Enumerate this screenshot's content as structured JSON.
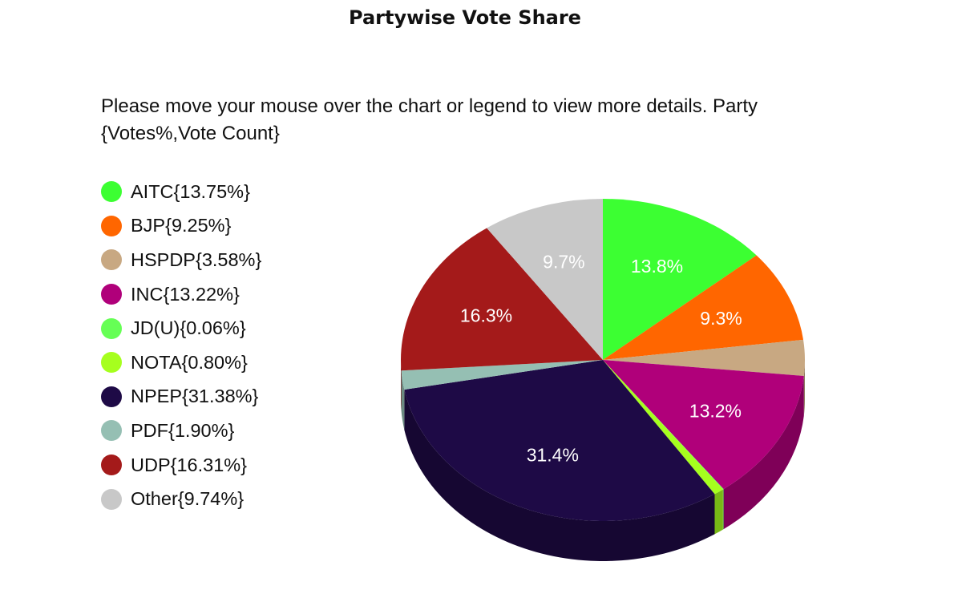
{
  "title": "Partywise Vote Share",
  "instructions": "Please move your mouse over the chart or legend to view more details. Party {Votes%,Vote Count}",
  "chart_data": {
    "type": "pie",
    "title": "Partywise Vote Share",
    "legend_position": "left",
    "slices": [
      {
        "label": "AITC",
        "value": 13.75,
        "legend": "AITC{13.75%}",
        "slice_label": "13.8%",
        "color": "#3cff32"
      },
      {
        "label": "BJP",
        "value": 9.25,
        "legend": "BJP{9.25%}",
        "slice_label": "9.3%",
        "color": "#ff6600"
      },
      {
        "label": "HSPDP",
        "value": 3.58,
        "legend": "HSPDP{3.58%}",
        "slice_label": "",
        "color": "#c8a882"
      },
      {
        "label": "INC",
        "value": 13.22,
        "legend": "INC{13.22%}",
        "slice_label": "13.2%",
        "color": "#b0007a"
      },
      {
        "label": "JD(U)",
        "value": 0.06,
        "legend": "JD(U){0.06%}",
        "slice_label": "",
        "color": "#66ff55"
      },
      {
        "label": "NOTA",
        "value": 0.8,
        "legend": "NOTA{0.80%}",
        "slice_label": "",
        "color": "#a6ff1e"
      },
      {
        "label": "NPEP",
        "value": 31.38,
        "legend": "NPEP{31.38%}",
        "slice_label": "31.4%",
        "color": "#1e0a46"
      },
      {
        "label": "PDF",
        "value": 1.9,
        "legend": "PDF{1.90%}",
        "slice_label": "",
        "color": "#95bfb3"
      },
      {
        "label": "UDP",
        "value": 16.31,
        "legend": "UDP{16.31%}",
        "slice_label": "16.3%",
        "color": "#a41a1a"
      },
      {
        "label": "Other",
        "value": 9.74,
        "legend": "Other{9.74%}",
        "slice_label": "9.7%",
        "color": "#c8c8c8"
      }
    ]
  }
}
